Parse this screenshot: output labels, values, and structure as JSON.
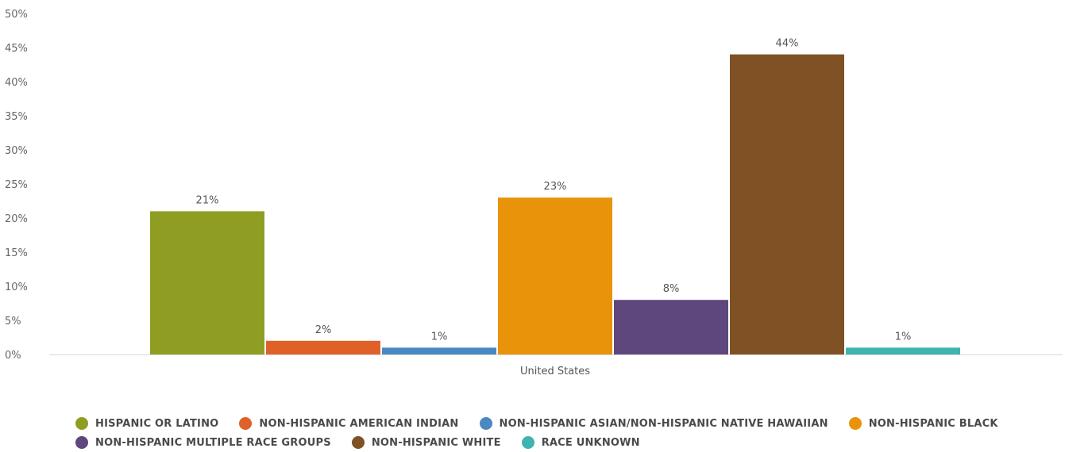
{
  "chart_data": {
    "type": "bar",
    "categories": [
      "United States"
    ],
    "series": [
      {
        "name": "HISPANIC OR LATINO",
        "values": [
          21
        ],
        "color": "#8f9e23",
        "label": "21%"
      },
      {
        "name": "NON-HISPANIC AMERICAN INDIAN",
        "values": [
          2
        ],
        "color": "#e0602a",
        "label": "2%"
      },
      {
        "name": "NON-HISPANIC ASIAN/NON-HISPANIC NATIVE HAWAIIAN",
        "values": [
          1
        ],
        "color": "#4b88c2",
        "label": "1%"
      },
      {
        "name": "NON-HISPANIC BLACK",
        "values": [
          23
        ],
        "color": "#e8930a",
        "label": "23%"
      },
      {
        "name": "NON-HISPANIC MULTIPLE RACE GROUPS",
        "values": [
          8
        ],
        "color": "#5e477d",
        "label": "8%"
      },
      {
        "name": "NON-HISPANIC WHITE",
        "values": [
          44
        ],
        "color": "#7f5124",
        "label": "44%"
      },
      {
        "name": "RACE UNKNOWN",
        "values": [
          1
        ],
        "color": "#3fb3b0",
        "label": "1%"
      }
    ],
    "ylim": [
      0,
      50
    ],
    "yticks": [
      "0%",
      "5%",
      "10%",
      "15%",
      "20%",
      "25%",
      "30%",
      "35%",
      "40%",
      "45%",
      "50%"
    ],
    "xlabel": "",
    "ylabel": "",
    "grid": false,
    "legend": "bottom"
  }
}
